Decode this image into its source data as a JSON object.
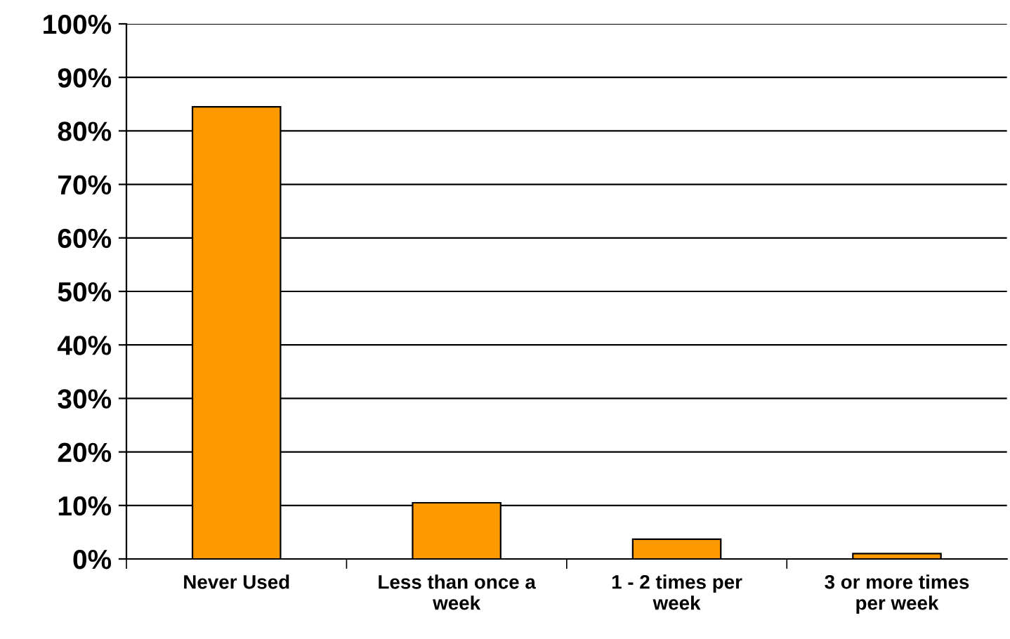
{
  "chart_data": {
    "type": "bar",
    "categories": [
      "Never Used",
      "Less than once a\nweek",
      "1 - 2 times per\nweek",
      "3 or more times\nper week"
    ],
    "values": [
      84.5,
      10.5,
      3.7,
      1.0
    ],
    "color": "#ff9900",
    "ylim": [
      0,
      100
    ],
    "yticks": [
      {
        "value": 0,
        "label": "0%"
      },
      {
        "value": 10,
        "label": "10%"
      },
      {
        "value": 20,
        "label": "20%"
      },
      {
        "value": 30,
        "label": "30%"
      },
      {
        "value": 40,
        "label": "40%"
      },
      {
        "value": 50,
        "label": "50%"
      },
      {
        "value": 60,
        "label": "60%"
      },
      {
        "value": 70,
        "label": "70%"
      },
      {
        "value": 80,
        "label": "80%"
      },
      {
        "value": 90,
        "label": "90%"
      },
      {
        "value": 100,
        "label": "100%"
      }
    ],
    "grid": "y",
    "legend": false
  }
}
